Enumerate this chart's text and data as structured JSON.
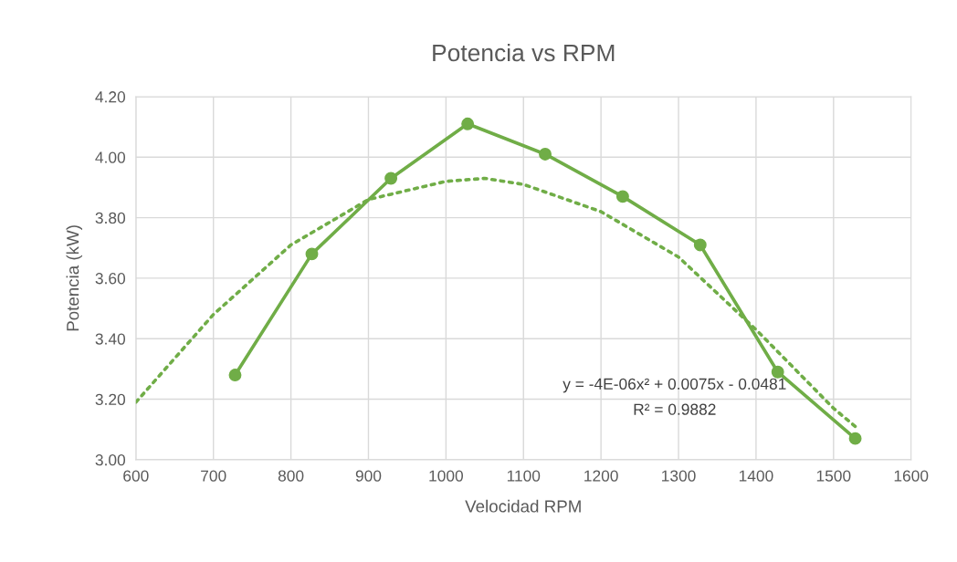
{
  "chart_data": {
    "type": "line",
    "title": "Potencia vs RPM",
    "xlabel": "Velocidad RPM",
    "ylabel": "Potencia (kW)",
    "xlim": [
      600,
      1600
    ],
    "xticks": [
      600,
      700,
      800,
      900,
      1000,
      1100,
      1200,
      1300,
      1400,
      1500,
      1600
    ],
    "ylim": [
      3.0,
      4.2
    ],
    "yticks": [
      {
        "value": 3.0,
        "label": "3.00"
      },
      {
        "value": 3.2,
        "label": "3.20"
      },
      {
        "value": 3.4,
        "label": "3.40"
      },
      {
        "value": 3.6,
        "label": "3.60"
      },
      {
        "value": 3.8,
        "label": "3.80"
      },
      {
        "value": 4.0,
        "label": "4.00"
      },
      {
        "value": 4.2,
        "label": "4.20"
      }
    ],
    "grid": true,
    "legend": false,
    "series": [
      {
        "color": "#70ad47",
        "marker": "circle",
        "line_style": "solid",
        "x": [
          728,
          827,
          929,
          1028,
          1128,
          1228,
          1328,
          1428,
          1528
        ],
        "values": [
          3.28,
          3.68,
          3.93,
          4.11,
          4.01,
          3.87,
          3.71,
          3.29,
          3.07
        ]
      },
      {
        "color": "#70ad47",
        "marker": "none",
        "line_style": "dotted",
        "x": [
          600,
          700,
          800,
          900,
          1000,
          1050,
          1100,
          1200,
          1300,
          1400,
          1500,
          1528
        ],
        "values": [
          3.19,
          3.48,
          3.71,
          3.86,
          3.92,
          3.93,
          3.91,
          3.82,
          3.67,
          3.43,
          3.17,
          3.11
        ]
      }
    ],
    "annotations": [
      "y = -4E-06x² + 0.0075x - 0.0481",
      "R² = 0.9882"
    ]
  }
}
